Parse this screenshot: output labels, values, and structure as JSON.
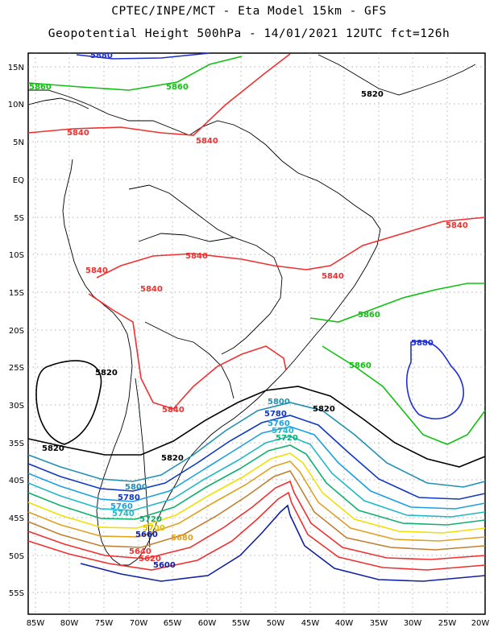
{
  "header": {
    "line1": "CPTEC/INPE/MCT -  Eta Model 15km - GFS",
    "line2": "Geopotential Height 500hPa - 14/01/2021 12UTC fct=126h"
  },
  "map": {
    "lat_labels": [
      "15N",
      "10N",
      "5N",
      "EQ",
      "5S",
      "10S",
      "15S",
      "20S",
      "25S",
      "30S",
      "35S",
      "40S",
      "45S",
      "50S",
      "55S"
    ],
    "lon_labels": [
      "85W",
      "80W",
      "75W",
      "70W",
      "65W",
      "60W",
      "55W",
      "50W",
      "45W",
      "40W",
      "35W",
      "30W",
      "25W",
      "20W"
    ],
    "contours": [
      {
        "value": "5880",
        "color": "#2030d0",
        "labels": [
          "5880",
          "5880"
        ]
      },
      {
        "value": "5860",
        "color": "#10c010",
        "labels": [
          "5860",
          "5860",
          "5860",
          "5860"
        ]
      },
      {
        "value": "5840",
        "color": "#f03030",
        "labels": [
          "5840",
          "5840",
          "5840",
          "5840",
          "5840",
          "5840",
          "5840",
          "5840"
        ]
      },
      {
        "value": "5820",
        "color": "#000000",
        "labels": [
          "5820",
          "5820",
          "5820",
          "5820",
          "5820"
        ]
      },
      {
        "value": "5800",
        "color": "#2090b0",
        "labels": [
          "5800",
          "5800"
        ]
      },
      {
        "value": "5780",
        "color": "#1038c0",
        "labels": [
          "5780",
          "5780"
        ]
      },
      {
        "value": "5760",
        "color": "#1ca0e0",
        "labels": [
          "5760",
          "5760"
        ]
      },
      {
        "value": "5740",
        "color": "#20b8c8",
        "labels": [
          "5740",
          "5740"
        ]
      },
      {
        "value": "5720",
        "color": "#10b070",
        "labels": [
          "5720",
          "5720"
        ]
      },
      {
        "value": "5700",
        "color": "#f0e000",
        "labels": [
          "5700"
        ]
      },
      {
        "value": "5680",
        "color": "#e0a020",
        "labels": [
          "5680"
        ]
      },
      {
        "value": "5660",
        "color": "#c08030",
        "labels": [
          "5660"
        ]
      },
      {
        "value": "5640",
        "color": "#f03030",
        "labels": [
          "5640"
        ]
      },
      {
        "value": "5620",
        "color": "#f03030",
        "labels": [
          "5620"
        ]
      },
      {
        "value": "5600",
        "color": "#1020a0",
        "labels": [
          "5600"
        ]
      }
    ]
  }
}
